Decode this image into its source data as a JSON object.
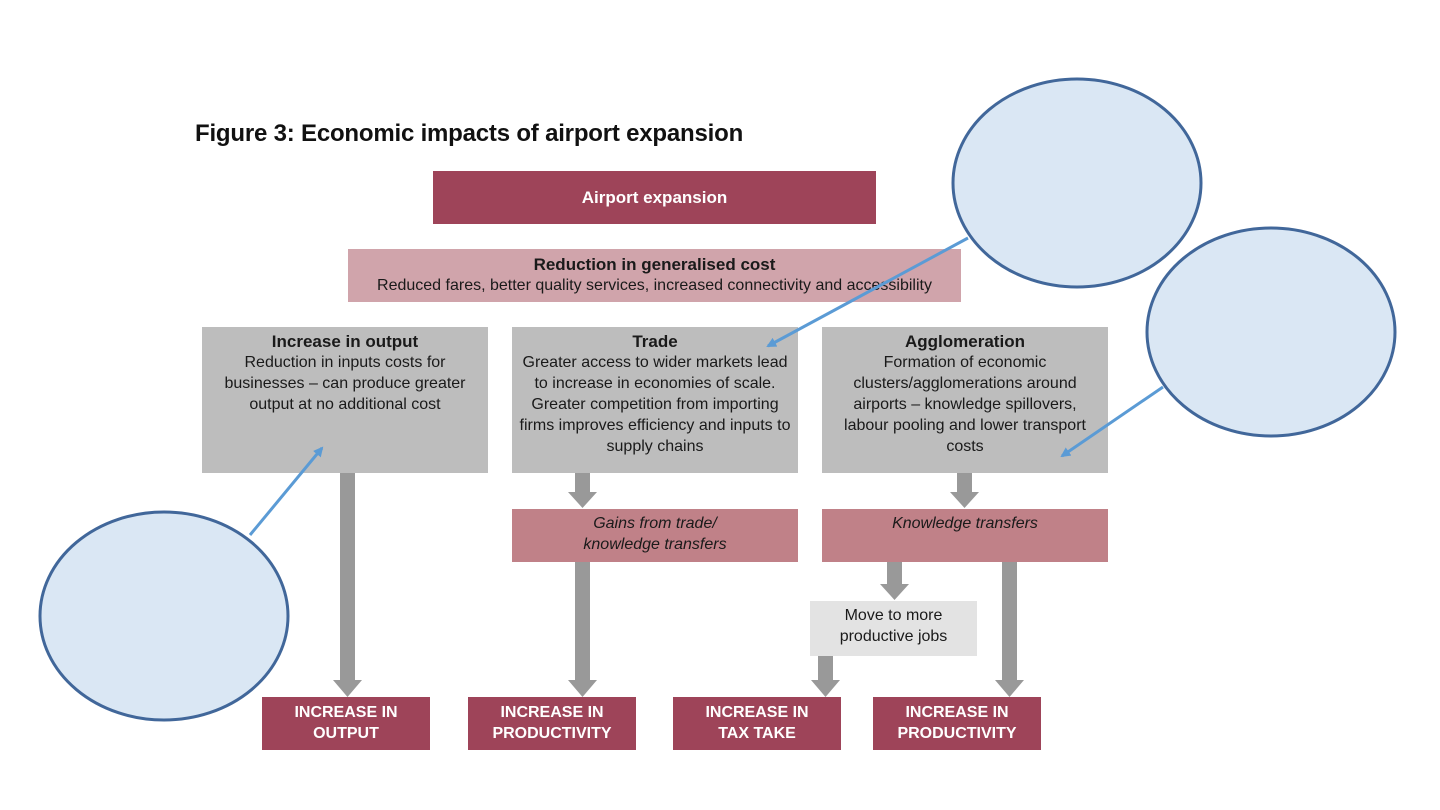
{
  "figure": {
    "title": "Figure 3: Economic impacts of airport expansion"
  },
  "top_box": {
    "label": "Airport expansion"
  },
  "cost_box": {
    "title": "Reduction in generalised cost",
    "body": "Reduced fares, better quality services, increased connectivity and accessibility"
  },
  "columns": [
    {
      "title": "Increase in output",
      "body": "Reduction in inputs costs for businesses – can produce greater output at no additional cost"
    },
    {
      "title": "Trade",
      "body": "Greater access to wider markets lead to increase in economies of scale. Greater competition from importing firms improves efficiency and inputs to supply chains"
    },
    {
      "title": "Agglomeration",
      "body": "Formation of economic clusters/agglomerations around airports – knowledge spillovers, labour pooling and lower transport costs"
    }
  ],
  "mid_boxes": {
    "trade": "Gains from trade/ knowledge transfers",
    "agglomeration": "Knowledge transfers",
    "jobs": "Move to more productive jobs"
  },
  "outcomes": [
    {
      "line1": "INCREASE IN",
      "line2": "OUTPUT"
    },
    {
      "line1": "INCREASE IN",
      "line2": "PRODUCTIVITY"
    },
    {
      "line1": "INCREASE IN",
      "line2": "TAX TAKE"
    },
    {
      "line1": "INCREASE IN",
      "line2": "PRODUCTIVITY"
    }
  ],
  "colors": {
    "dark_maroon": "#9e4459",
    "light_pink": "#d0a4ab",
    "rose": "#c08188",
    "grey_box": "#bdbdbd",
    "light_grey_box": "#e3e3e3",
    "arrow_grey": "#999999",
    "bubble_fill": "#dae7f4",
    "bubble_stroke": "#41679a",
    "pointer_blue": "#5b9bd5"
  }
}
